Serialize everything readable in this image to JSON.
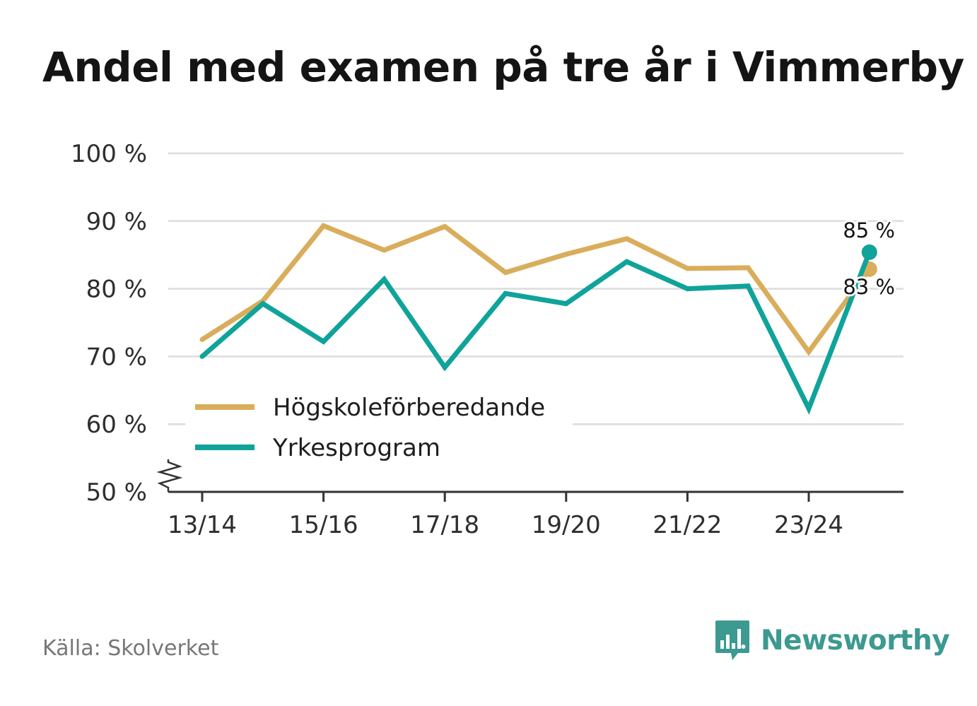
{
  "title": "Andel med examen på tre år i Vimmerby",
  "source": "Källa: Skolverket",
  "brand": {
    "name": "Newsworthy",
    "logo_icon": "newsworthy-bar-chart-icon",
    "color": "#3c9a90"
  },
  "chart_data": {
    "type": "line",
    "title": "Andel med examen på tre år i Vimmerby",
    "xlabel": "",
    "ylabel": "",
    "x": [
      "13/14",
      "14/15",
      "15/16",
      "16/17",
      "17/18",
      "18/19",
      "19/20",
      "20/21",
      "21/22",
      "22/23",
      "23/24",
      "24/25"
    ],
    "x_tick_labels": [
      "13/14",
      "15/16",
      "17/18",
      "19/20",
      "21/22",
      "23/24"
    ],
    "ylim": [
      50,
      100
    ],
    "y_ticks": [
      50,
      60,
      70,
      80,
      90,
      100
    ],
    "y_tick_labels": [
      "50 %",
      "60 %",
      "70 %",
      "80 %",
      "90 %",
      "100 %"
    ],
    "y_axis_break": true,
    "grid": true,
    "legend_position": "bottom-left",
    "series": [
      {
        "name": "Högskoleförberedande",
        "color": "#d9ad5b",
        "values": [
          72.5,
          78.2,
          89.3,
          85.7,
          89.2,
          82.4,
          85.1,
          87.4,
          83.0,
          83.1,
          70.7,
          82.9
        ],
        "end_label": "83 %"
      },
      {
        "name": "Yrkesprogram",
        "color": "#0fa39a",
        "values": [
          70.0,
          77.8,
          72.2,
          81.4,
          68.4,
          79.3,
          77.8,
          84.0,
          80.0,
          80.4,
          62.3,
          85.4
        ],
        "end_label": "85 %"
      }
    ]
  }
}
